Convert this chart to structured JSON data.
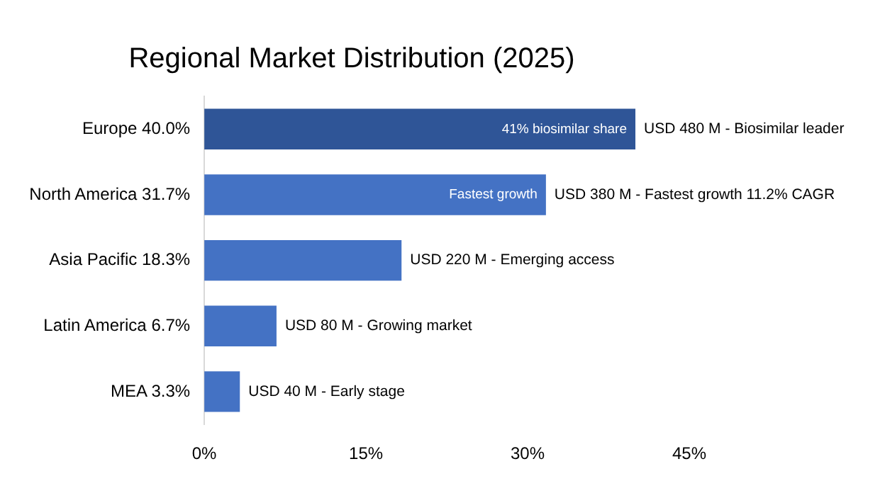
{
  "chart_data": {
    "type": "bar",
    "orientation": "horizontal",
    "title": "Regional Market Distribution (2025)",
    "categories": [
      "Europe 40.0%",
      "North America 31.7%",
      "Asia Pacific 18.3%",
      "Latin America 6.7%",
      "MEA 3.3%"
    ],
    "values": [
      40.0,
      31.7,
      18.3,
      6.7,
      3.3
    ],
    "colors": [
      "#2f5597",
      "#4472c4",
      "#4472c4",
      "#4472c4",
      "#4472c4"
    ],
    "annotations": [
      {
        "text": "USD 480 M - Biosimilar leader",
        "x": 40.0,
        "y": "Europe 40.0%"
      },
      {
        "text": "USD 380 M - Fastest growth 11.2% CAGR",
        "x": 31.7,
        "y": "North America 31.7%"
      },
      {
        "text": "USD 220 M - Emerging access",
        "x": 18.3,
        "y": "Asia Pacific 18.3%"
      },
      {
        "text": "USD 80 M - Growing market",
        "x": 6.7,
        "y": "Latin America 6.7%"
      },
      {
        "text": "USD 40 M - Early stage",
        "x": 3.3,
        "y": "MEA 3.3%"
      },
      {
        "text": "41% biosimilar share",
        "x": 40.0,
        "y": "Europe 40.0%"
      },
      {
        "text": "Fastest growth",
        "x": 31.7,
        "y": "North America 31.7%"
      }
    ],
    "xlim": [
      0,
      45
    ],
    "xticks": [
      {
        "value": 0,
        "label": "0%"
      },
      {
        "value": 15,
        "label": "15%"
      },
      {
        "value": 30,
        "label": "30%"
      },
      {
        "value": 45,
        "label": "45%"
      }
    ],
    "grid": false,
    "legend": false
  }
}
